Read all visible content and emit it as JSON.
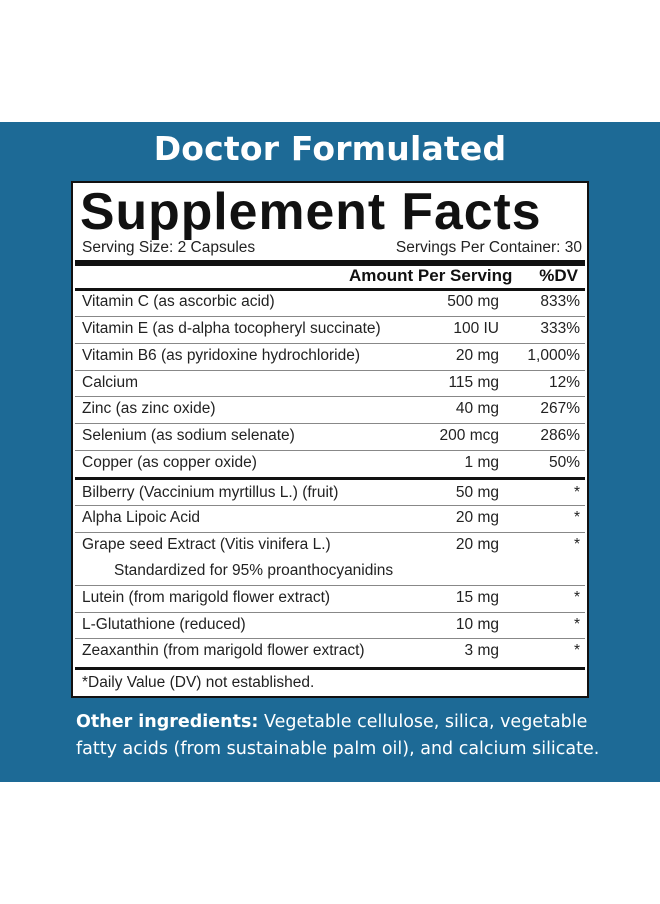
{
  "headline": "Doctor Formulated",
  "panel": {
    "title": "Supplement Facts",
    "serving_size": "Serving Size: 2 Capsules",
    "servings_per_container": "Servings Per Container: 30",
    "col_amount": "Amount Per Serving",
    "col_dv": "%DV",
    "vitamins": [
      {
        "name": "Vitamin C (as ascorbic acid)",
        "amount": "500 mg",
        "dv": "833%"
      },
      {
        "name": "Vitamin E (as d-alpha tocopheryl succinate)",
        "amount": "100 IU",
        "dv": "333%"
      },
      {
        "name": "Vitamin B6 (as pyridoxine hydrochloride)",
        "amount": "20 mg",
        "dv": "1,000%"
      },
      {
        "name": "Calcium",
        "amount": "115 mg",
        "dv": "12%"
      },
      {
        "name": "Zinc (as zinc oxide)",
        "amount": "40 mg",
        "dv": "267%"
      },
      {
        "name": "Selenium (as sodium selenate)",
        "amount": "200 mcg",
        "dv": "286%"
      },
      {
        "name": "Copper (as copper oxide)",
        "amount": "1 mg",
        "dv": "50%"
      }
    ],
    "others": [
      {
        "name": "Bilberry (Vaccinium myrtillus L.) (fruit)",
        "amount": "50 mg",
        "dv": "*"
      },
      {
        "name": "Alpha Lipoic Acid",
        "amount": "20 mg",
        "dv": "*"
      },
      {
        "name": "Grape seed Extract (Vitis vinifera L.)",
        "amount": "20 mg",
        "dv": "*"
      },
      {
        "name": "Standardized for 95% proanthocyanidins"
      },
      {
        "name": "Lutein (from marigold flower extract)",
        "amount": "15 mg",
        "dv": "*"
      },
      {
        "name": "L-Glutathione (reduced)",
        "amount": "10 mg",
        "dv": "*"
      },
      {
        "name": "Zeaxanthin (from marigold flower extract)",
        "amount": "3 mg",
        "dv": "*"
      }
    ],
    "footnote": "*Daily Value (DV) not established."
  },
  "other_ingredients": {
    "label": "Other ingredients:",
    "text": " Vegetable cellulose, silica, vegetable fatty acids (from sustainable palm oil), and calcium silicate."
  },
  "colors": {
    "band": "#1d6a96",
    "text_on_band": "#ffffff",
    "panel_border": "#111111"
  }
}
